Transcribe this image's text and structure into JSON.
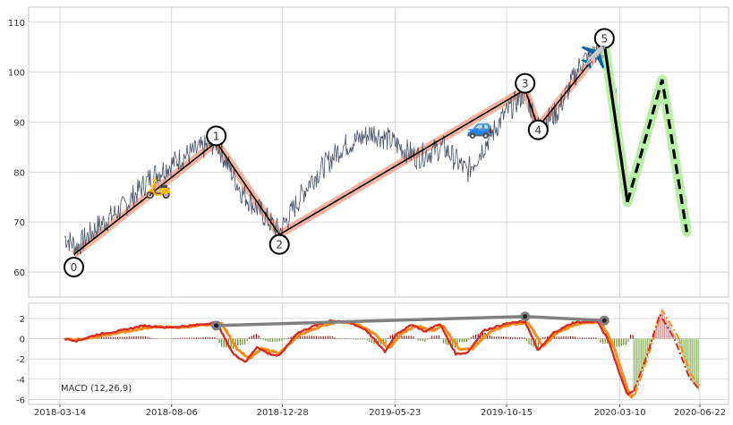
{
  "chart_data": [
    {
      "type": "line",
      "panel": "price",
      "title": "",
      "xlabel": "",
      "ylabel": "",
      "ylim": [
        55,
        113
      ],
      "yticks": [
        60,
        70,
        80,
        90,
        100,
        110
      ],
      "grid": true,
      "legend": "none",
      "price_anchors": [
        {
          "x": "2018-03-20",
          "y": 67
        },
        {
          "x": "2018-04-05",
          "y": 65
        },
        {
          "x": "2018-05-01",
          "y": 69
        },
        {
          "x": "2018-06-05",
          "y": 73
        },
        {
          "x": "2018-07-10",
          "y": 79
        },
        {
          "x": "2018-08-20",
          "y": 83
        },
        {
          "x": "2018-10-03",
          "y": 86
        },
        {
          "x": "2018-11-05",
          "y": 76
        },
        {
          "x": "2018-12-24",
          "y": 68
        },
        {
          "x": "2019-02-01",
          "y": 78
        },
        {
          "x": "2019-03-15",
          "y": 85
        },
        {
          "x": "2019-04-25",
          "y": 88
        },
        {
          "x": "2019-05-20",
          "y": 86
        },
        {
          "x": "2019-06-20",
          "y": 83
        },
        {
          "x": "2019-07-25",
          "y": 85
        },
        {
          "x": "2019-08-25",
          "y": 80
        },
        {
          "x": "2019-10-10",
          "y": 91
        },
        {
          "x": "2019-11-08",
          "y": 96
        },
        {
          "x": "2019-11-25",
          "y": 89
        },
        {
          "x": "2019-12-20",
          "y": 92
        },
        {
          "x": "2020-01-20",
          "y": 102
        },
        {
          "x": "2020-02-10",
          "y": 104
        },
        {
          "x": "2020-02-28",
          "y": 100
        },
        {
          "x": "2020-03-10",
          "y": 90
        },
        {
          "x": "2020-03-20",
          "y": 74
        }
      ],
      "pattern_points": [
        {
          "label": "0",
          "x": "2018-04-01",
          "y": 63.5
        },
        {
          "label": "1",
          "x": "2018-10-03",
          "y": 86
        },
        {
          "label": "2",
          "x": "2018-12-24",
          "y": 67.5
        },
        {
          "label": "3",
          "x": "2019-11-08",
          "y": 96.5
        },
        {
          "label": "4",
          "x": "2019-11-25",
          "y": 89
        },
        {
          "label": "5",
          "x": "2020-02-19",
          "y": 105.5
        }
      ],
      "projection_solid": [
        {
          "x": "2020-02-19",
          "y": 105.5
        },
        {
          "x": "2020-03-20",
          "y": 74
        }
      ],
      "projection_dashed": [
        {
          "x": "2020-03-20",
          "y": 74
        },
        {
          "x": "2020-05-04",
          "y": 98.5
        },
        {
          "x": "2020-06-05",
          "y": 68
        }
      ],
      "emoji_markers": [
        {
          "label": "🛵",
          "x": "2018-07-20",
          "y": 77
        },
        {
          "label": "🚙",
          "x": "2019-09-10",
          "y": 89
        },
        {
          "label": "✈️",
          "x": "2020-02-05",
          "y": 103
        }
      ],
      "colors": {
        "price": "#4a5568",
        "zigzag": "#000000",
        "zigzag_band": "#f4a08a",
        "projection_band": "#b8f0a8",
        "grid": "#d0d0d0"
      }
    },
    {
      "type": "line",
      "panel": "macd",
      "title": "",
      "xlabel": "",
      "ylabel": "",
      "ylim": [
        -6.5,
        3.5
      ],
      "yticks": [
        -6,
        -4,
        -2,
        0,
        2
      ],
      "xlim": [
        "2018-03-14",
        "2020-06-30"
      ],
      "xticks": [
        "2018-03-14",
        "2018-08-06",
        "2018-12-28",
        "2019-05-23",
        "2019-10-15",
        "2020-03-10",
        "2020-06-22"
      ],
      "grid": true,
      "annotation": "MACD (12,26,9)",
      "macd_anchors": [
        {
          "x": "2018-03-20",
          "y": 0.0
        },
        {
          "x": "2018-04-05",
          "y": -0.2
        },
        {
          "x": "2018-05-01",
          "y": 0.4
        },
        {
          "x": "2018-06-01",
          "y": 0.8
        },
        {
          "x": "2018-07-01",
          "y": 1.3
        },
        {
          "x": "2018-08-01",
          "y": 1.1
        },
        {
          "x": "2018-09-01",
          "y": 1.3
        },
        {
          "x": "2018-10-03",
          "y": 1.6
        },
        {
          "x": "2018-10-25",
          "y": -1.5
        },
        {
          "x": "2018-11-10",
          "y": -2.3
        },
        {
          "x": "2018-11-25",
          "y": -0.8
        },
        {
          "x": "2018-12-10",
          "y": -1.5
        },
        {
          "x": "2018-12-24",
          "y": -1.7
        },
        {
          "x": "2019-01-15",
          "y": 0.5
        },
        {
          "x": "2019-02-05",
          "y": 1.2
        },
        {
          "x": "2019-03-01",
          "y": 1.8
        },
        {
          "x": "2019-03-25",
          "y": 1.6
        },
        {
          "x": "2019-04-15",
          "y": 0.9
        },
        {
          "x": "2019-05-10",
          "y": -1.3
        },
        {
          "x": "2019-05-25",
          "y": 0.5
        },
        {
          "x": "2019-06-15",
          "y": 1.4
        },
        {
          "x": "2019-07-01",
          "y": 0.7
        },
        {
          "x": "2019-07-20",
          "y": 1.5
        },
        {
          "x": "2019-08-10",
          "y": -1.5
        },
        {
          "x": "2019-08-25",
          "y": -1.4
        },
        {
          "x": "2019-09-15",
          "y": 0.8
        },
        {
          "x": "2019-10-15",
          "y": 1.5
        },
        {
          "x": "2019-11-08",
          "y": 1.7
        },
        {
          "x": "2019-11-25",
          "y": -1.2
        },
        {
          "x": "2019-12-15",
          "y": 0.6
        },
        {
          "x": "2020-01-10",
          "y": 1.6
        },
        {
          "x": "2020-02-10",
          "y": 1.7
        },
        {
          "x": "2020-02-25",
          "y": -0.3
        },
        {
          "x": "2020-03-10",
          "y": -3.5
        },
        {
          "x": "2020-03-20",
          "y": -5.5
        },
        {
          "x": "2020-03-28",
          "y": -5.2
        }
      ],
      "signal_anchors": [
        {
          "x": "2018-03-20",
          "y": 0.0
        },
        {
          "x": "2018-04-10",
          "y": -0.1
        },
        {
          "x": "2018-05-15",
          "y": 0.4
        },
        {
          "x": "2018-06-15",
          "y": 0.8
        },
        {
          "x": "2018-07-15",
          "y": 1.2
        },
        {
          "x": "2018-08-15",
          "y": 1.1
        },
        {
          "x": "2018-09-15",
          "y": 1.3
        },
        {
          "x": "2018-10-10",
          "y": 1.5
        },
        {
          "x": "2018-10-30",
          "y": -1.0
        },
        {
          "x": "2018-11-15",
          "y": -2.0
        },
        {
          "x": "2018-12-01",
          "y": -1.0
        },
        {
          "x": "2018-12-24",
          "y": -1.4
        },
        {
          "x": "2019-01-20",
          "y": 0.4
        },
        {
          "x": "2019-02-15",
          "y": 1.2
        },
        {
          "x": "2019-03-10",
          "y": 1.7
        },
        {
          "x": "2019-04-01",
          "y": 1.5
        },
        {
          "x": "2019-04-25",
          "y": 0.6
        },
        {
          "x": "2019-05-15",
          "y": -1.0
        },
        {
          "x": "2019-06-01",
          "y": 0.5
        },
        {
          "x": "2019-06-20",
          "y": 1.3
        },
        {
          "x": "2019-07-10",
          "y": 0.8
        },
        {
          "x": "2019-07-25",
          "y": 1.3
        },
        {
          "x": "2019-08-15",
          "y": -1.1
        },
        {
          "x": "2019-09-01",
          "y": -1.0
        },
        {
          "x": "2019-09-25",
          "y": 0.8
        },
        {
          "x": "2019-10-20",
          "y": 1.4
        },
        {
          "x": "2019-11-12",
          "y": 1.6
        },
        {
          "x": "2019-12-01",
          "y": -0.8
        },
        {
          "x": "2019-12-20",
          "y": 0.6
        },
        {
          "x": "2020-01-15",
          "y": 1.5
        },
        {
          "x": "2020-02-15",
          "y": 1.6
        },
        {
          "x": "2020-03-01",
          "y": -0.5
        },
        {
          "x": "2020-03-15",
          "y": -3.8
        },
        {
          "x": "2020-03-24",
          "y": -5.8
        },
        {
          "x": "2020-03-30",
          "y": -5.5
        }
      ],
      "pattern_line": [
        {
          "x": "2018-10-03",
          "y": 1.3
        },
        {
          "x": "2019-11-08",
          "y": 2.2
        },
        {
          "x": "2020-02-19",
          "y": 1.8
        }
      ],
      "projection_macd": [
        {
          "x": "2020-03-28",
          "y": -5.2
        },
        {
          "x": "2020-04-15",
          "y": -1.5
        },
        {
          "x": "2020-05-01",
          "y": 2.4
        },
        {
          "x": "2020-05-20",
          "y": 0.0
        },
        {
          "x": "2020-06-08",
          "y": -3.8
        },
        {
          "x": "2020-06-20",
          "y": -4.9
        }
      ],
      "projection_signal": [
        {
          "x": "2020-03-30",
          "y": -5.5
        },
        {
          "x": "2020-04-18",
          "y": -1.2
        },
        {
          "x": "2020-05-04",
          "y": 2.8
        },
        {
          "x": "2020-05-24",
          "y": 0.3
        },
        {
          "x": "2020-06-10",
          "y": -3.5
        },
        {
          "x": "2020-06-22",
          "y": -4.6
        }
      ],
      "colors": {
        "macd": "#d62d20",
        "signal": "#ff8c1a",
        "hist_pos": "#8b1a1a",
        "hist_neg": "#6b8e23",
        "hist_proj_pos": "#d49aa0",
        "hist_proj_neg": "#9bbf70",
        "pattern_line": "#808080"
      }
    }
  ]
}
